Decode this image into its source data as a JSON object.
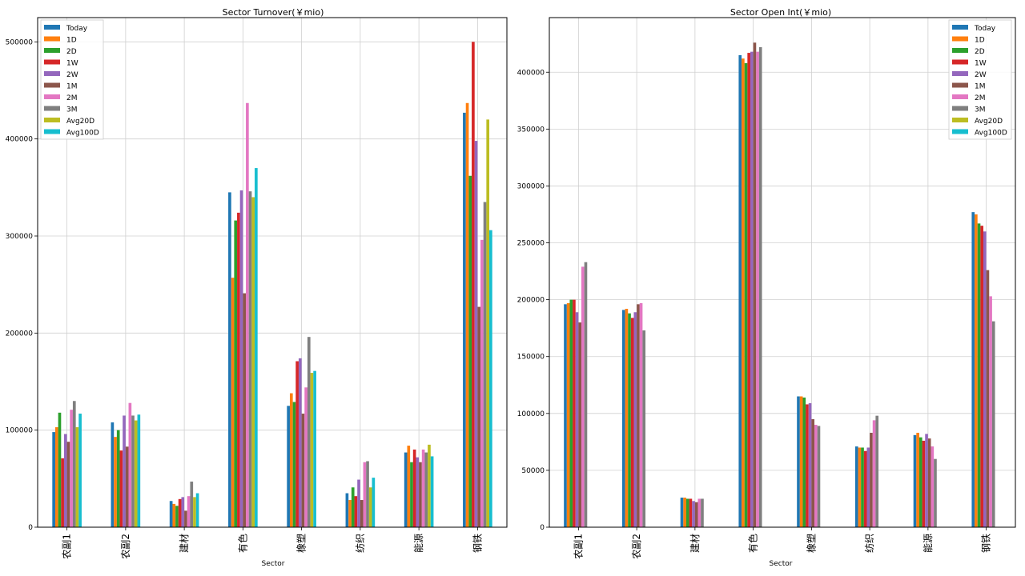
{
  "series_names": [
    "Today",
    "1D",
    "2D",
    "1W",
    "2W",
    "1M",
    "2M",
    "3M",
    "Avg20D",
    "Avg100D"
  ],
  "colors": [
    "#1f77b4",
    "#ff7f0e",
    "#2ca02c",
    "#d62728",
    "#9467bd",
    "#8c564b",
    "#e377c2",
    "#7f7f7f",
    "#bcbd22",
    "#17becf"
  ],
  "chart_data": [
    {
      "type": "bar",
      "title": "Sector Turnover(￥mio)",
      "xlabel": "Sector",
      "ylabel": "",
      "categories": [
        "农副1",
        "农副2",
        "建材",
        "有色",
        "橡塑",
        "纺织",
        "能源",
        "钢铁"
      ],
      "ylim": [
        0,
        525000
      ],
      "yticks": [
        0,
        100000,
        200000,
        300000,
        400000,
        500000
      ],
      "ytick_labels": [
        "0",
        "100000",
        "200000",
        "300000",
        "400000",
        "500000"
      ],
      "grid": true,
      "legend": "top-left",
      "series": [
        {
          "name": "Today",
          "values": [
            98000,
            108000,
            27000,
            345000,
            125000,
            35000,
            77000,
            427000
          ]
        },
        {
          "name": "1D",
          "values": [
            103000,
            93000,
            24000,
            257000,
            138000,
            28000,
            84000,
            437000
          ]
        },
        {
          "name": "2D",
          "values": [
            118000,
            100000,
            22000,
            316000,
            129000,
            41000,
            67000,
            362000
          ]
        },
        {
          "name": "1W",
          "values": [
            71000,
            79000,
            29000,
            324000,
            171000,
            32000,
            80000,
            500000
          ]
        },
        {
          "name": "2W",
          "values": [
            96000,
            115000,
            31000,
            347000,
            174000,
            49000,
            72000,
            398000
          ]
        },
        {
          "name": "1M",
          "values": [
            88000,
            83000,
            17000,
            241000,
            117000,
            28000,
            67000,
            227000
          ]
        },
        {
          "name": "2M",
          "values": [
            121000,
            128000,
            32000,
            437000,
            144000,
            67000,
            80000,
            296000
          ]
        },
        {
          "name": "3M",
          "values": [
            130000,
            115000,
            47000,
            346000,
            196000,
            68000,
            77000,
            335000
          ]
        },
        {
          "name": "Avg20D",
          "values": [
            103000,
            110000,
            31000,
            340000,
            159000,
            41000,
            85000,
            420000
          ]
        },
        {
          "name": "Avg100D",
          "values": [
            117000,
            116000,
            35000,
            370000,
            161000,
            51000,
            73000,
            306000
          ]
        }
      ]
    },
    {
      "type": "bar",
      "title": "Sector Open Int(￥mio)",
      "xlabel": "Sector",
      "ylabel": "",
      "categories": [
        "农副1",
        "农副2",
        "建材",
        "有色",
        "橡塑",
        "纺织",
        "能源",
        "钢铁"
      ],
      "ylim": [
        0,
        448000
      ],
      "yticks": [
        0,
        50000,
        100000,
        150000,
        200000,
        250000,
        300000,
        350000,
        400000
      ],
      "ytick_labels": [
        "0",
        "50000",
        "100000",
        "150000",
        "200000",
        "250000",
        "300000",
        "350000",
        "400000"
      ],
      "grid": true,
      "legend": "top-right",
      "series": [
        {
          "name": "Today",
          "values": [
            196000,
            191000,
            26000,
            415000,
            115000,
            71000,
            81000,
            277000
          ]
        },
        {
          "name": "1D",
          "values": [
            197000,
            192000,
            26000,
            412000,
            115000,
            70000,
            83000,
            275000
          ]
        },
        {
          "name": "2D",
          "values": [
            200000,
            188000,
            25000,
            408000,
            114000,
            70000,
            79000,
            267000
          ]
        },
        {
          "name": "1W",
          "values": [
            200000,
            184000,
            25000,
            417000,
            108000,
            67000,
            76000,
            265000
          ]
        },
        {
          "name": "2W",
          "values": [
            189000,
            189000,
            23000,
            418000,
            109000,
            70000,
            82000,
            260000
          ]
        },
        {
          "name": "1M",
          "values": [
            180000,
            196000,
            22000,
            426000,
            95000,
            83000,
            78000,
            226000
          ]
        },
        {
          "name": "2M",
          "values": [
            229000,
            197000,
            25000,
            418000,
            90000,
            94000,
            71000,
            203000
          ]
        },
        {
          "name": "3M",
          "values": [
            233000,
            173000,
            25000,
            422000,
            89000,
            98000,
            60000,
            181000
          ]
        },
        {
          "name": "Avg20D",
          "values": [
            null,
            null,
            null,
            null,
            null,
            null,
            null,
            null
          ]
        },
        {
          "name": "Avg100D",
          "values": [
            null,
            null,
            null,
            null,
            null,
            null,
            null,
            null
          ]
        }
      ]
    }
  ]
}
